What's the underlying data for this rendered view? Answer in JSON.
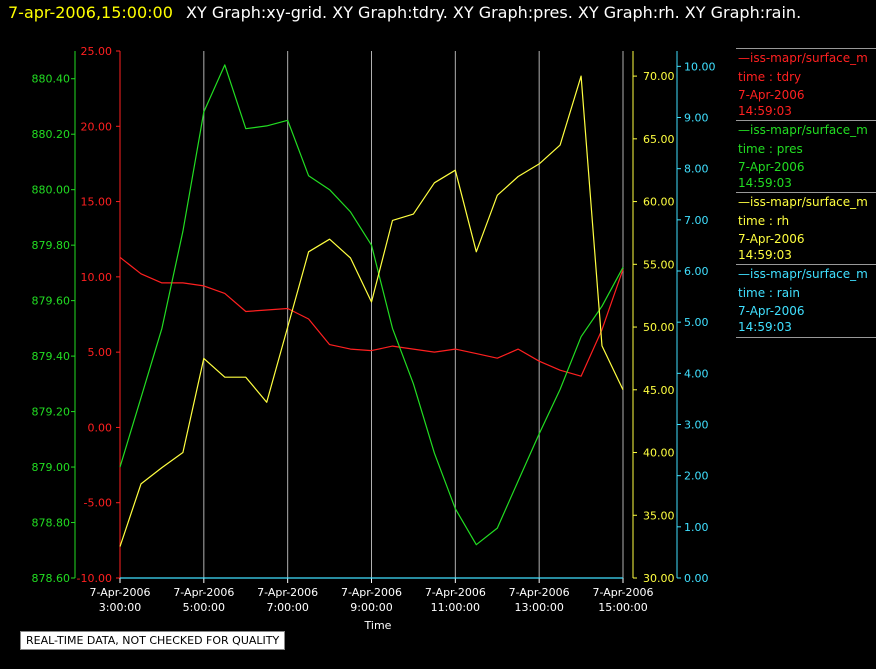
{
  "header": {
    "timestamp": "7-apr-2006,15:00:00",
    "graphs": "XY Graph:xy-grid.  XY Graph:tdry.  XY Graph:pres.  XY Graph:rh.  XY Graph:rain."
  },
  "disclaimer": "REAL-TIME DATA, NOT CHECKED FOR QUALITY",
  "colors": {
    "tdry": "#ff2020",
    "pres": "#22dd22",
    "rh": "#ffff40",
    "rain": "#40e0ff",
    "grid": "#b0b0b0"
  },
  "legend": [
    {
      "source": "iss-mapr/surface_m",
      "var": "time : tdry",
      "date": "7-Apr-2006",
      "time": "14:59:03",
      "color": "#ff2020"
    },
    {
      "source": "iss-mapr/surface_m",
      "var": "time : pres",
      "date": "7-Apr-2006",
      "time": "14:59:03",
      "color": "#22dd22"
    },
    {
      "source": "iss-mapr/surface_m",
      "var": "time : rh",
      "date": "7-Apr-2006",
      "time": "14:59:03",
      "color": "#ffff40"
    },
    {
      "source": "iss-mapr/surface_m",
      "var": "time : rain",
      "date": "7-Apr-2006",
      "time": "14:59:03",
      "color": "#40e0ff"
    }
  ],
  "chart_data": {
    "type": "line",
    "xlabel": "Time",
    "x_ticks": [
      {
        "date": "7-Apr-2006",
        "time": "3:00:00",
        "hour": 3
      },
      {
        "date": "7-Apr-2006",
        "time": "5:00:00",
        "hour": 5
      },
      {
        "date": "7-Apr-2006",
        "time": "7:00:00",
        "hour": 7
      },
      {
        "date": "7-Apr-2006",
        "time": "9:00:00",
        "hour": 9
      },
      {
        "date": "7-Apr-2006",
        "time": "11:00:00",
        "hour": 11
      },
      {
        "date": "7-Apr-2006",
        "time": "13:00:00",
        "hour": 13
      },
      {
        "date": "7-Apr-2006",
        "time": "15:00:00",
        "hour": 15
      }
    ],
    "x_hours": [
      3,
      3.5,
      4,
      4.5,
      5,
      5.5,
      6,
      6.5,
      7,
      7.5,
      8,
      8.5,
      9,
      9.5,
      10,
      10.5,
      11,
      11.5,
      12,
      12.5,
      13,
      13.5,
      14,
      14.5,
      15
    ],
    "xlim_hours": [
      3,
      15
    ],
    "grid": "vertical",
    "axes": {
      "pres": {
        "ylim": [
          878.6,
          880.5
        ],
        "ticks": [
          "878.60",
          "878.80",
          "879.00",
          "879.20",
          "879.40",
          "879.60",
          "879.80",
          "880.00",
          "880.20",
          "880.40"
        ]
      },
      "tdry": {
        "ylim": [
          -10,
          25
        ],
        "ticks": [
          "-10.00",
          "-5.00",
          "0.00",
          "5.00",
          "10.00",
          "15.00",
          "20.00",
          "25.00"
        ]
      },
      "rh": {
        "ylim": [
          30,
          72
        ],
        "ticks": [
          "30.00",
          "35.00",
          "40.00",
          "45.00",
          "50.00",
          "55.00",
          "60.00",
          "65.00",
          "70.00"
        ]
      },
      "rain": {
        "ylim": [
          0,
          10.3
        ],
        "ticks": [
          "0.00",
          "1.00",
          "2.00",
          "3.00",
          "4.00",
          "5.00",
          "6.00",
          "7.00",
          "8.00",
          "9.00",
          "10.00"
        ]
      }
    },
    "series": [
      {
        "key": "tdry",
        "axis": "tdry",
        "values": [
          11.3,
          10.2,
          9.6,
          9.6,
          9.4,
          8.9,
          7.7,
          7.8,
          7.9,
          7.2,
          5.5,
          5.2,
          5.1,
          5.4,
          5.2,
          5.0,
          5.2,
          4.9,
          4.6,
          5.2,
          4.4,
          3.8,
          3.4,
          6.5,
          10.5
        ]
      },
      {
        "key": "pres",
        "axis": "pres",
        "values": [
          879.0,
          879.25,
          879.5,
          879.85,
          880.28,
          880.45,
          880.22,
          880.23,
          880.25,
          880.05,
          880.0,
          879.92,
          879.8,
          879.5,
          879.3,
          879.05,
          878.85,
          878.72,
          878.78,
          878.95,
          879.12,
          879.28,
          879.47,
          879.58,
          879.72
        ]
      },
      {
        "key": "rh",
        "axis": "rh",
        "values": [
          32.5,
          37.5,
          38.8,
          40.0,
          47.5,
          46.0,
          46.0,
          44.0,
          50.0,
          56.0,
          57.0,
          55.5,
          52.0,
          58.5,
          59.0,
          61.5,
          62.5,
          56.0,
          60.5,
          62.0,
          63.0,
          64.5,
          70.0,
          48.5,
          45.0
        ]
      },
      {
        "key": "rain",
        "axis": "rain",
        "values": [
          0.0,
          0.0,
          0.0,
          0.0,
          0.0,
          0.0,
          0.0,
          0.0,
          0.0,
          0.0,
          0.0,
          0.0,
          0.0,
          0.0,
          0.0,
          0.0,
          0.0,
          0.0,
          0.0,
          0.0,
          0.0,
          0.0,
          0.0,
          0.0,
          0.0
        ]
      }
    ]
  }
}
